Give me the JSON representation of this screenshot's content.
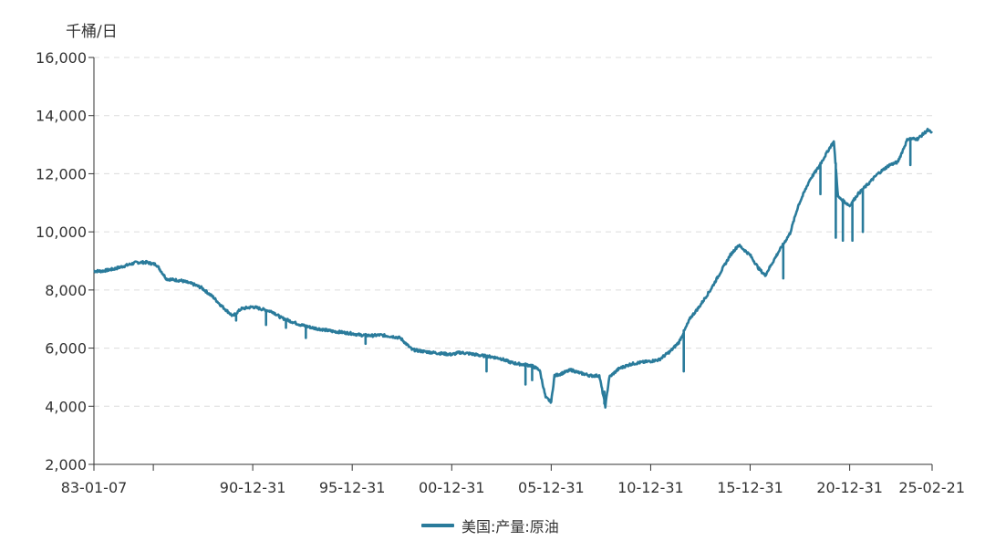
{
  "chart_data": {
    "type": "line",
    "unit_label": "千桶/日",
    "xlabel": "",
    "ylabel": "千桶/日",
    "ylim": [
      2000,
      16000
    ],
    "y_ticks": [
      2000,
      4000,
      6000,
      8000,
      10000,
      12000,
      14000,
      16000
    ],
    "y_tick_labels": [
      "2,000",
      "4,000",
      "6,000",
      "8,000",
      "10,000",
      "12,000",
      "14,000",
      "16,000"
    ],
    "x_range": [
      "1983-01-07",
      "2025-02-21"
    ],
    "x_ticks": [
      {
        "date": "1983-01-07",
        "label": "83-01-07"
      },
      {
        "date": "1986-01-01",
        "label": ""
      },
      {
        "date": "1990-12-31",
        "label": "90-12-31"
      },
      {
        "date": "1995-12-31",
        "label": "95-12-31"
      },
      {
        "date": "2000-12-31",
        "label": "00-12-31"
      },
      {
        "date": "2005-12-31",
        "label": "05-12-31"
      },
      {
        "date": "2010-12-31",
        "label": "10-12-31"
      },
      {
        "date": "2015-12-31",
        "label": "15-12-31"
      },
      {
        "date": "2020-12-31",
        "label": "20-12-31"
      },
      {
        "date": "2025-02-21",
        "label": "25-02-21"
      }
    ],
    "grid": {
      "horizontal": true,
      "vertical": false,
      "style": "dashed"
    },
    "legend_position": "bottom-center",
    "series": [
      {
        "name": "美国:产量:原油",
        "color": "#2a7b9b",
        "points": [
          [
            "1983-01-07",
            8650
          ],
          [
            "1983-06-01",
            8650
          ],
          [
            "1984-01-01",
            8720
          ],
          [
            "1984-09-01",
            8850
          ],
          [
            "1985-03-01",
            8950
          ],
          [
            "1985-09-01",
            8950
          ],
          [
            "1986-03-01",
            8870
          ],
          [
            "1986-09-01",
            8380
          ],
          [
            "1987-06-01",
            8320
          ],
          [
            "1988-01-01",
            8200
          ],
          [
            "1988-06-01",
            8080
          ],
          [
            "1989-01-01",
            7760
          ],
          [
            "1989-06-01",
            7460
          ],
          [
            "1990-01-01",
            7100
          ],
          [
            "1990-06-01",
            7350
          ],
          [
            "1990-12-31",
            7420
          ],
          [
            "1991-06-01",
            7350
          ],
          [
            "1992-01-01",
            7250
          ],
          [
            "1992-06-01",
            7050
          ],
          [
            "1993-01-01",
            6900
          ],
          [
            "1993-06-01",
            6800
          ],
          [
            "1994-01-01",
            6700
          ],
          [
            "1994-06-01",
            6650
          ],
          [
            "1995-01-01",
            6580
          ],
          [
            "1995-06-01",
            6550
          ],
          [
            "1995-12-31",
            6500
          ],
          [
            "1996-06-01",
            6450
          ],
          [
            "1997-01-01",
            6430
          ],
          [
            "1997-06-01",
            6450
          ],
          [
            "1998-01-01",
            6400
          ],
          [
            "1998-06-01",
            6350
          ],
          [
            "1999-01-01",
            5950
          ],
          [
            "1999-06-01",
            5900
          ],
          [
            "2000-01-01",
            5850
          ],
          [
            "2000-06-01",
            5820
          ],
          [
            "2000-12-31",
            5780
          ],
          [
            "2001-06-01",
            5850
          ],
          [
            "2002-01-01",
            5800
          ],
          [
            "2002-06-01",
            5750
          ],
          [
            "2003-01-01",
            5700
          ],
          [
            "2003-06-01",
            5650
          ],
          [
            "2004-01-01",
            5500
          ],
          [
            "2004-06-01",
            5450
          ],
          [
            "2005-01-01",
            5400
          ],
          [
            "2005-06-01",
            5250
          ],
          [
            "2005-09-20",
            4300
          ],
          [
            "2005-12-31",
            4150
          ],
          [
            "2006-03-01",
            5050
          ],
          [
            "2006-06-01",
            5100
          ],
          [
            "2007-01-01",
            5250
          ],
          [
            "2007-06-01",
            5150
          ],
          [
            "2008-01-01",
            5050
          ],
          [
            "2008-06-01",
            5050
          ],
          [
            "2008-09-20",
            4000
          ],
          [
            "2008-12-01",
            5000
          ],
          [
            "2009-06-01",
            5300
          ],
          [
            "2010-01-01",
            5450
          ],
          [
            "2010-06-01",
            5500
          ],
          [
            "2010-12-31",
            5550
          ],
          [
            "2011-06-01",
            5600
          ],
          [
            "2012-01-01",
            5900
          ],
          [
            "2012-06-01",
            6200
          ],
          [
            "2013-01-01",
            7050
          ],
          [
            "2013-06-01",
            7400
          ],
          [
            "2014-01-01",
            8000
          ],
          [
            "2014-06-01",
            8500
          ],
          [
            "2015-01-01",
            9200
          ],
          [
            "2015-06-01",
            9550
          ],
          [
            "2015-12-31",
            9200
          ],
          [
            "2016-06-01",
            8750
          ],
          [
            "2016-10-01",
            8500
          ],
          [
            "2017-06-01",
            9300
          ],
          [
            "2018-01-01",
            9950
          ],
          [
            "2018-06-01",
            10900
          ],
          [
            "2019-01-01",
            11800
          ],
          [
            "2019-06-01",
            12200
          ],
          [
            "2020-01-01",
            12900
          ],
          [
            "2020-03-15",
            13100
          ],
          [
            "2020-06-01",
            11200
          ],
          [
            "2020-12-31",
            10900
          ],
          [
            "2021-06-01",
            11300
          ],
          [
            "2022-01-01",
            11700
          ],
          [
            "2022-06-01",
            12000
          ],
          [
            "2023-01-01",
            12300
          ],
          [
            "2023-06-01",
            12400
          ],
          [
            "2023-12-01",
            13200
          ],
          [
            "2024-06-01",
            13200
          ],
          [
            "2024-12-01",
            13500
          ],
          [
            "2025-02-21",
            13400
          ]
        ],
        "noise": [
          {
            "date": "1990-03-01",
            "value": 6950
          },
          {
            "date": "1991-09-01",
            "value": 6800
          },
          {
            "date": "1992-09-01",
            "value": 6700
          },
          {
            "date": "1993-09-01",
            "value": 6350
          },
          {
            "date": "1996-09-01",
            "value": 6150
          },
          {
            "date": "2002-10-01",
            "value": 5200
          },
          {
            "date": "2004-09-15",
            "value": 4750
          },
          {
            "date": "2005-01-15",
            "value": 4900
          },
          {
            "date": "2008-09-01",
            "value": 4500
          },
          {
            "date": "2012-08-29",
            "value": 5200
          },
          {
            "date": "2017-08-30",
            "value": 8400
          },
          {
            "date": "2019-07-13",
            "value": 11300
          },
          {
            "date": "2020-04-20",
            "value": 9800
          },
          {
            "date": "2020-08-28",
            "value": 9700
          },
          {
            "date": "2021-02-19",
            "value": 9700
          },
          {
            "date": "2021-08-30",
            "value": 10000
          },
          {
            "date": "2024-01-19",
            "value": 12300
          }
        ]
      }
    ]
  }
}
